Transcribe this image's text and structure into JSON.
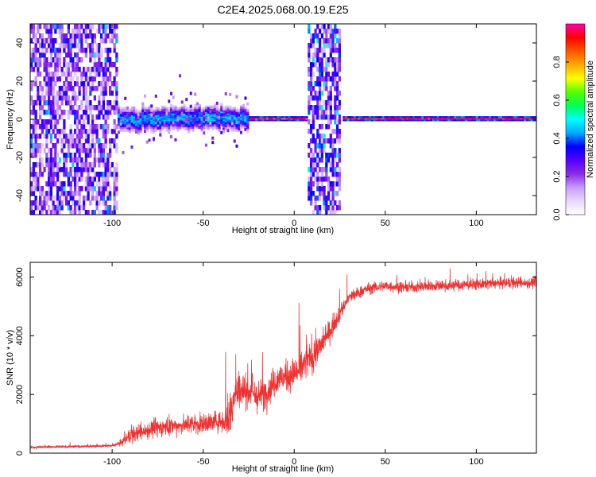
{
  "title": "C2E4.2025.068.00.19.E25",
  "colors": {
    "snr_line": "#ee3333",
    "spectral_ramp": [
      "#ffffff",
      "#e8d8ff",
      "#c79bff",
      "#8a2be2",
      "#5500ff",
      "#0000ff",
      "#00aaff",
      "#00ffff",
      "#00ff55",
      "#55ff00",
      "#ffff00",
      "#ffaa00",
      "#ff5500",
      "#ff0000",
      "#ff00aa"
    ]
  },
  "chart_data": [
    {
      "type": "heatmap",
      "xlabel": "Height of straight line (km)",
      "ylabel": "Frequency (Hz)",
      "xlim": [
        -145,
        133
      ],
      "ylim": [
        -50,
        50
      ],
      "x_ticks": [
        -100,
        -50,
        0,
        50,
        100
      ],
      "x_tick_labels": [
        "-100",
        "-50",
        "0",
        "50",
        "100"
      ],
      "y_ticks": [
        -40,
        -20,
        0,
        20,
        40
      ],
      "y_tick_labels": [
        "-40",
        "-20",
        "0",
        "20",
        "40"
      ],
      "colorbar": {
        "label": "Normalized spectral amplitude",
        "range": [
          0,
          1
        ],
        "ticks": [
          0.0,
          0.2,
          0.4,
          0.6,
          0.8
        ],
        "tick_labels": [
          "0.0",
          "0.2",
          "0.4",
          "0.6",
          "0.8"
        ]
      },
      "regions": [
        {
          "x": [
            -145,
            -97
          ],
          "kind": "broadband_noise",
          "level": 0.3
        },
        {
          "x": [
            -97,
            -25
          ],
          "kind": "noisy_carrier",
          "level": 0.45,
          "freq_spread": 6
        },
        {
          "x": [
            -25,
            7
          ],
          "kind": "carrier",
          "level": 0.95,
          "freq_spread": 1
        },
        {
          "x": [
            8,
            26
          ],
          "kind": "broadband_noise",
          "level": 0.35
        },
        {
          "x": [
            27,
            133
          ],
          "kind": "carrier",
          "level": 0.98,
          "freq_spread": 1
        }
      ],
      "grid": false,
      "legend": "none"
    },
    {
      "type": "line",
      "xlabel": "Height of straight line (km)",
      "ylabel": "SNR (10 * v/v)",
      "xlim": [
        -145,
        133
      ],
      "ylim": [
        0,
        6500
      ],
      "x_ticks": [
        -100,
        -50,
        0,
        50,
        100
      ],
      "x_tick_labels": [
        "-100",
        "-50",
        "0",
        "50",
        "100"
      ],
      "y_ticks": [
        0,
        2000,
        4000,
        6000
      ],
      "y_tick_labels": [
        "0",
        "2000",
        "4000",
        "6000"
      ],
      "series": [
        {
          "x": [
            -145,
            -100,
            -95,
            -90,
            -80,
            -70,
            -60,
            -50,
            -40,
            -35,
            -33,
            -30,
            -25,
            -20,
            -15,
            -10,
            -5,
            0,
            5,
            10,
            15,
            20,
            25,
            30,
            40,
            50,
            60,
            80,
            100,
            120,
            133
          ],
          "y": [
            200,
            250,
            350,
            600,
            800,
            900,
            950,
            1000,
            1100,
            1300,
            2000,
            2200,
            2100,
            1900,
            2100,
            2500,
            2600,
            2700,
            3000,
            3300,
            3700,
            4200,
            4800,
            5300,
            5600,
            5700,
            5650,
            5700,
            5750,
            5800,
            5800
          ],
          "noise": [
            60,
            60,
            150,
            350,
            400,
            400,
            400,
            450,
            500,
            1200,
            1000,
            800,
            700,
            700,
            700,
            700,
            700,
            700,
            800,
            800,
            600,
            500,
            400,
            300,
            250,
            250,
            250,
            250,
            250,
            250,
            250
          ]
        }
      ],
      "grid": false,
      "legend": "none"
    }
  ]
}
